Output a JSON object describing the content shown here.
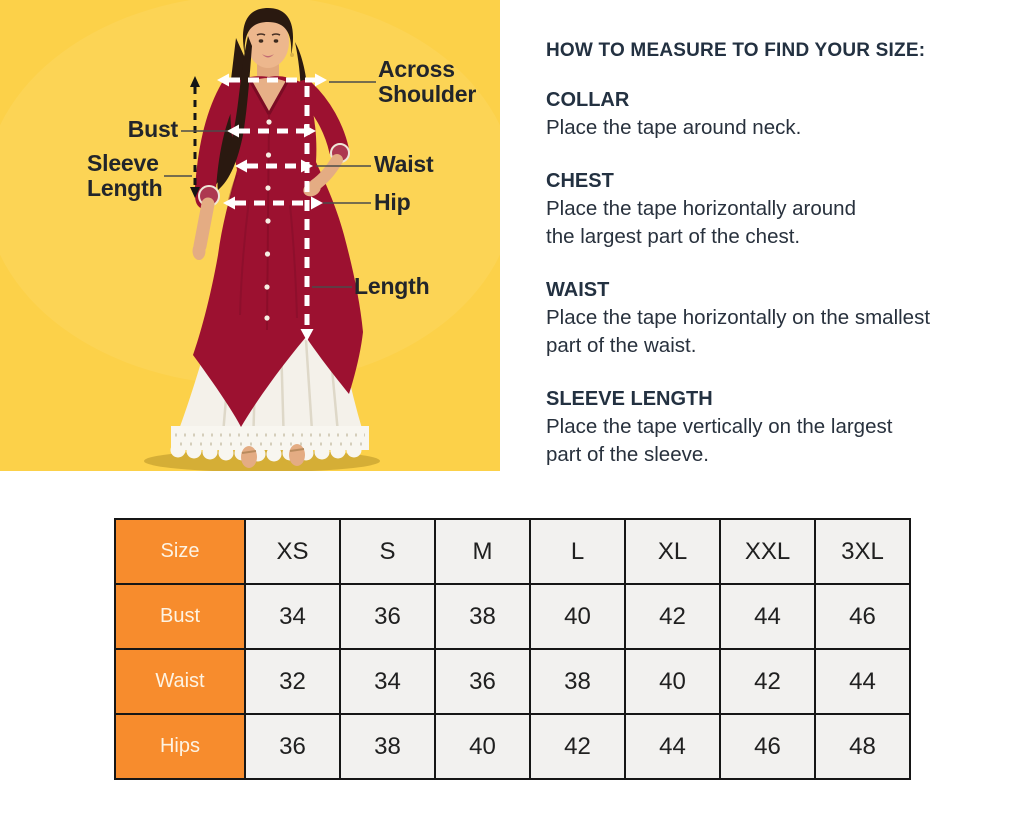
{
  "diagram": {
    "background_color": "#FCD149",
    "dress_color": "#9C1130",
    "labels": {
      "across_shoulder": "Across Shoulder",
      "bust": "Bust",
      "sleeve_length": "Sleeve Length",
      "waist": "Waist",
      "hip": "Hip",
      "length": "Length"
    }
  },
  "guide": {
    "title": "HOW TO MEASURE TO FIND YOUR SIZE:",
    "sections": [
      {
        "heading": "COLLAR",
        "lines": [
          "Place the tape around neck."
        ]
      },
      {
        "heading": "CHEST",
        "lines": [
          "Place the tape horizontally around",
          "the largest part of the chest."
        ]
      },
      {
        "heading": "WAIST",
        "lines": [
          "Place the tape horizontally on the smallest",
          "part of the waist."
        ]
      },
      {
        "heading": "SLEEVE LENGTH",
        "lines": [
          "Place the tape vertically on the largest",
          "part of the sleeve."
        ]
      }
    ]
  },
  "size_table": {
    "corner_label": "Size",
    "sizes": [
      "XS",
      "S",
      "M",
      "L",
      "XL",
      "XXL",
      "3XL"
    ],
    "rows": [
      {
        "label": "Bust",
        "values": [
          "34",
          "36",
          "38",
          "40",
          "42",
          "44",
          "46"
        ]
      },
      {
        "label": "Waist",
        "values": [
          "32",
          "34",
          "36",
          "38",
          "40",
          "42",
          "44"
        ]
      },
      {
        "label": "Hips",
        "values": [
          "36",
          "38",
          "40",
          "42",
          "44",
          "46",
          "48"
        ]
      }
    ],
    "accent_color": "#F78C2D",
    "cell_background": "#F2F1EF"
  }
}
